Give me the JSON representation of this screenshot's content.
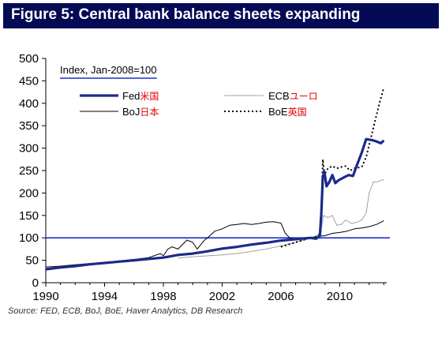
{
  "header": {
    "title": "Figure 5: Central bank balance sheets expanding",
    "title_bg": "#050a55"
  },
  "source": "Source: FED, ECB, BoJ, BoE, Haver Analytics, DB Research",
  "chart_data": {
    "type": "line",
    "title": "Figure 5: Central bank balance sheets expanding",
    "annotation": "Index, Jan-2008=100",
    "xlabel": "",
    "ylabel": "",
    "xlim": [
      1990,
      2013.2
    ],
    "ylim": [
      0,
      500
    ],
    "x_ticks": [
      1990,
      1994,
      1998,
      2002,
      2006,
      2010
    ],
    "y_ticks": [
      0,
      50,
      100,
      150,
      200,
      250,
      300,
      350,
      400,
      450,
      500
    ],
    "grid": false,
    "legend_position": "top",
    "reference_line": {
      "y": 100,
      "color": "#1c2fd0"
    },
    "series": [
      {
        "name": "Fed",
        "label_cjk": "米国",
        "color": "#1a2a8a",
        "style": "thick",
        "points": [
          [
            1990,
            30
          ],
          [
            1991,
            34
          ],
          [
            1992,
            37
          ],
          [
            1993,
            41
          ],
          [
            1994,
            44
          ],
          [
            1995,
            47
          ],
          [
            1996,
            50
          ],
          [
            1997,
            53
          ],
          [
            1998,
            56
          ],
          [
            1999,
            62
          ],
          [
            2000,
            65
          ],
          [
            2001,
            70
          ],
          [
            2002,
            76
          ],
          [
            2003,
            80
          ],
          [
            2004,
            85
          ],
          [
            2005,
            89
          ],
          [
            2006,
            94
          ],
          [
            2007,
            97
          ],
          [
            2008.0,
            100
          ],
          [
            2008.4,
            98
          ],
          [
            2008.65,
            105
          ],
          [
            2008.75,
            155
          ],
          [
            2008.85,
            235
          ],
          [
            2008.95,
            248
          ],
          [
            2009.1,
            215
          ],
          [
            2009.3,
            225
          ],
          [
            2009.5,
            240
          ],
          [
            2009.7,
            222
          ],
          [
            2009.9,
            228
          ],
          [
            2010.3,
            235
          ],
          [
            2010.6,
            240
          ],
          [
            2010.9,
            238
          ],
          [
            2011.2,
            265
          ],
          [
            2011.5,
            290
          ],
          [
            2011.8,
            320
          ],
          [
            2012.2,
            318
          ],
          [
            2012.5,
            315
          ],
          [
            2012.8,
            311
          ],
          [
            2013.0,
            317
          ]
        ]
      },
      {
        "name": "ECB",
        "label_cjk": "ユーロ",
        "color": "#a0a0a0",
        "style": "thin",
        "points": [
          [
            1999,
            55
          ],
          [
            2000,
            58
          ],
          [
            2001,
            60
          ],
          [
            2002,
            62
          ],
          [
            2003,
            65
          ],
          [
            2004,
            70
          ],
          [
            2005,
            75
          ],
          [
            2006,
            82
          ],
          [
            2007,
            90
          ],
          [
            2007.8,
            97
          ],
          [
            2008.0,
            100
          ],
          [
            2008.4,
            105
          ],
          [
            2008.7,
            110
          ],
          [
            2008.9,
            150
          ],
          [
            2009.2,
            145
          ],
          [
            2009.5,
            150
          ],
          [
            2009.8,
            128
          ],
          [
            2010.1,
            130
          ],
          [
            2010.4,
            140
          ],
          [
            2010.8,
            132
          ],
          [
            2011.2,
            135
          ],
          [
            2011.5,
            140
          ],
          [
            2011.8,
            155
          ],
          [
            2012.0,
            200
          ],
          [
            2012.3,
            225
          ],
          [
            2012.6,
            225
          ],
          [
            2012.9,
            230
          ],
          [
            2013.0,
            228
          ]
        ]
      },
      {
        "name": "BoJ",
        "label_cjk": "日本",
        "color": "#000000",
        "style": "thin",
        "points": [
          [
            1990,
            35
          ],
          [
            1991,
            37
          ],
          [
            1992,
            40
          ],
          [
            1993,
            43
          ],
          [
            1994,
            45
          ],
          [
            1995,
            49
          ],
          [
            1996,
            52
          ],
          [
            1997,
            56
          ],
          [
            1997.8,
            65
          ],
          [
            1998.0,
            60
          ],
          [
            1998.3,
            75
          ],
          [
            1998.6,
            80
          ],
          [
            1999,
            75
          ],
          [
            1999.6,
            95
          ],
          [
            2000,
            90
          ],
          [
            2000.3,
            75
          ],
          [
            2000.8,
            95
          ],
          [
            2001,
            100
          ],
          [
            2001.5,
            115
          ],
          [
            2002,
            120
          ],
          [
            2002.5,
            128
          ],
          [
            2003,
            130
          ],
          [
            2003.5,
            132
          ],
          [
            2004,
            130
          ],
          [
            2004.5,
            132
          ],
          [
            2005,
            135
          ],
          [
            2005.5,
            136
          ],
          [
            2006.0,
            133
          ],
          [
            2006.3,
            110
          ],
          [
            2006.6,
            100
          ],
          [
            2007,
            97
          ],
          [
            2008.0,
            100
          ],
          [
            2008.5,
            103
          ],
          [
            2009,
            105
          ],
          [
            2009.5,
            110
          ],
          [
            2010,
            112
          ],
          [
            2010.5,
            115
          ],
          [
            2011,
            120
          ],
          [
            2011.5,
            122
          ],
          [
            2012,
            125
          ],
          [
            2012.5,
            130
          ],
          [
            2013.0,
            138
          ]
        ]
      },
      {
        "name": "BoE",
        "label_cjk": "英国",
        "color": "#000000",
        "style": "dotted",
        "points": [
          [
            2006.0,
            80
          ],
          [
            2006.5,
            85
          ],
          [
            2007.0,
            90
          ],
          [
            2007.5,
            95
          ],
          [
            2008.0,
            100
          ],
          [
            2008.4,
            102
          ],
          [
            2008.7,
            110
          ],
          [
            2008.85,
            275
          ],
          [
            2008.95,
            240
          ],
          [
            2009.2,
            255
          ],
          [
            2009.5,
            260
          ],
          [
            2009.8,
            255
          ],
          [
            2010.1,
            258
          ],
          [
            2010.4,
            260
          ],
          [
            2010.7,
            250
          ],
          [
            2011.0,
            255
          ],
          [
            2011.5,
            258
          ],
          [
            2011.8,
            280
          ],
          [
            2012.1,
            320
          ],
          [
            2012.4,
            360
          ],
          [
            2012.7,
            400
          ],
          [
            2013.0,
            435
          ]
        ]
      }
    ]
  }
}
